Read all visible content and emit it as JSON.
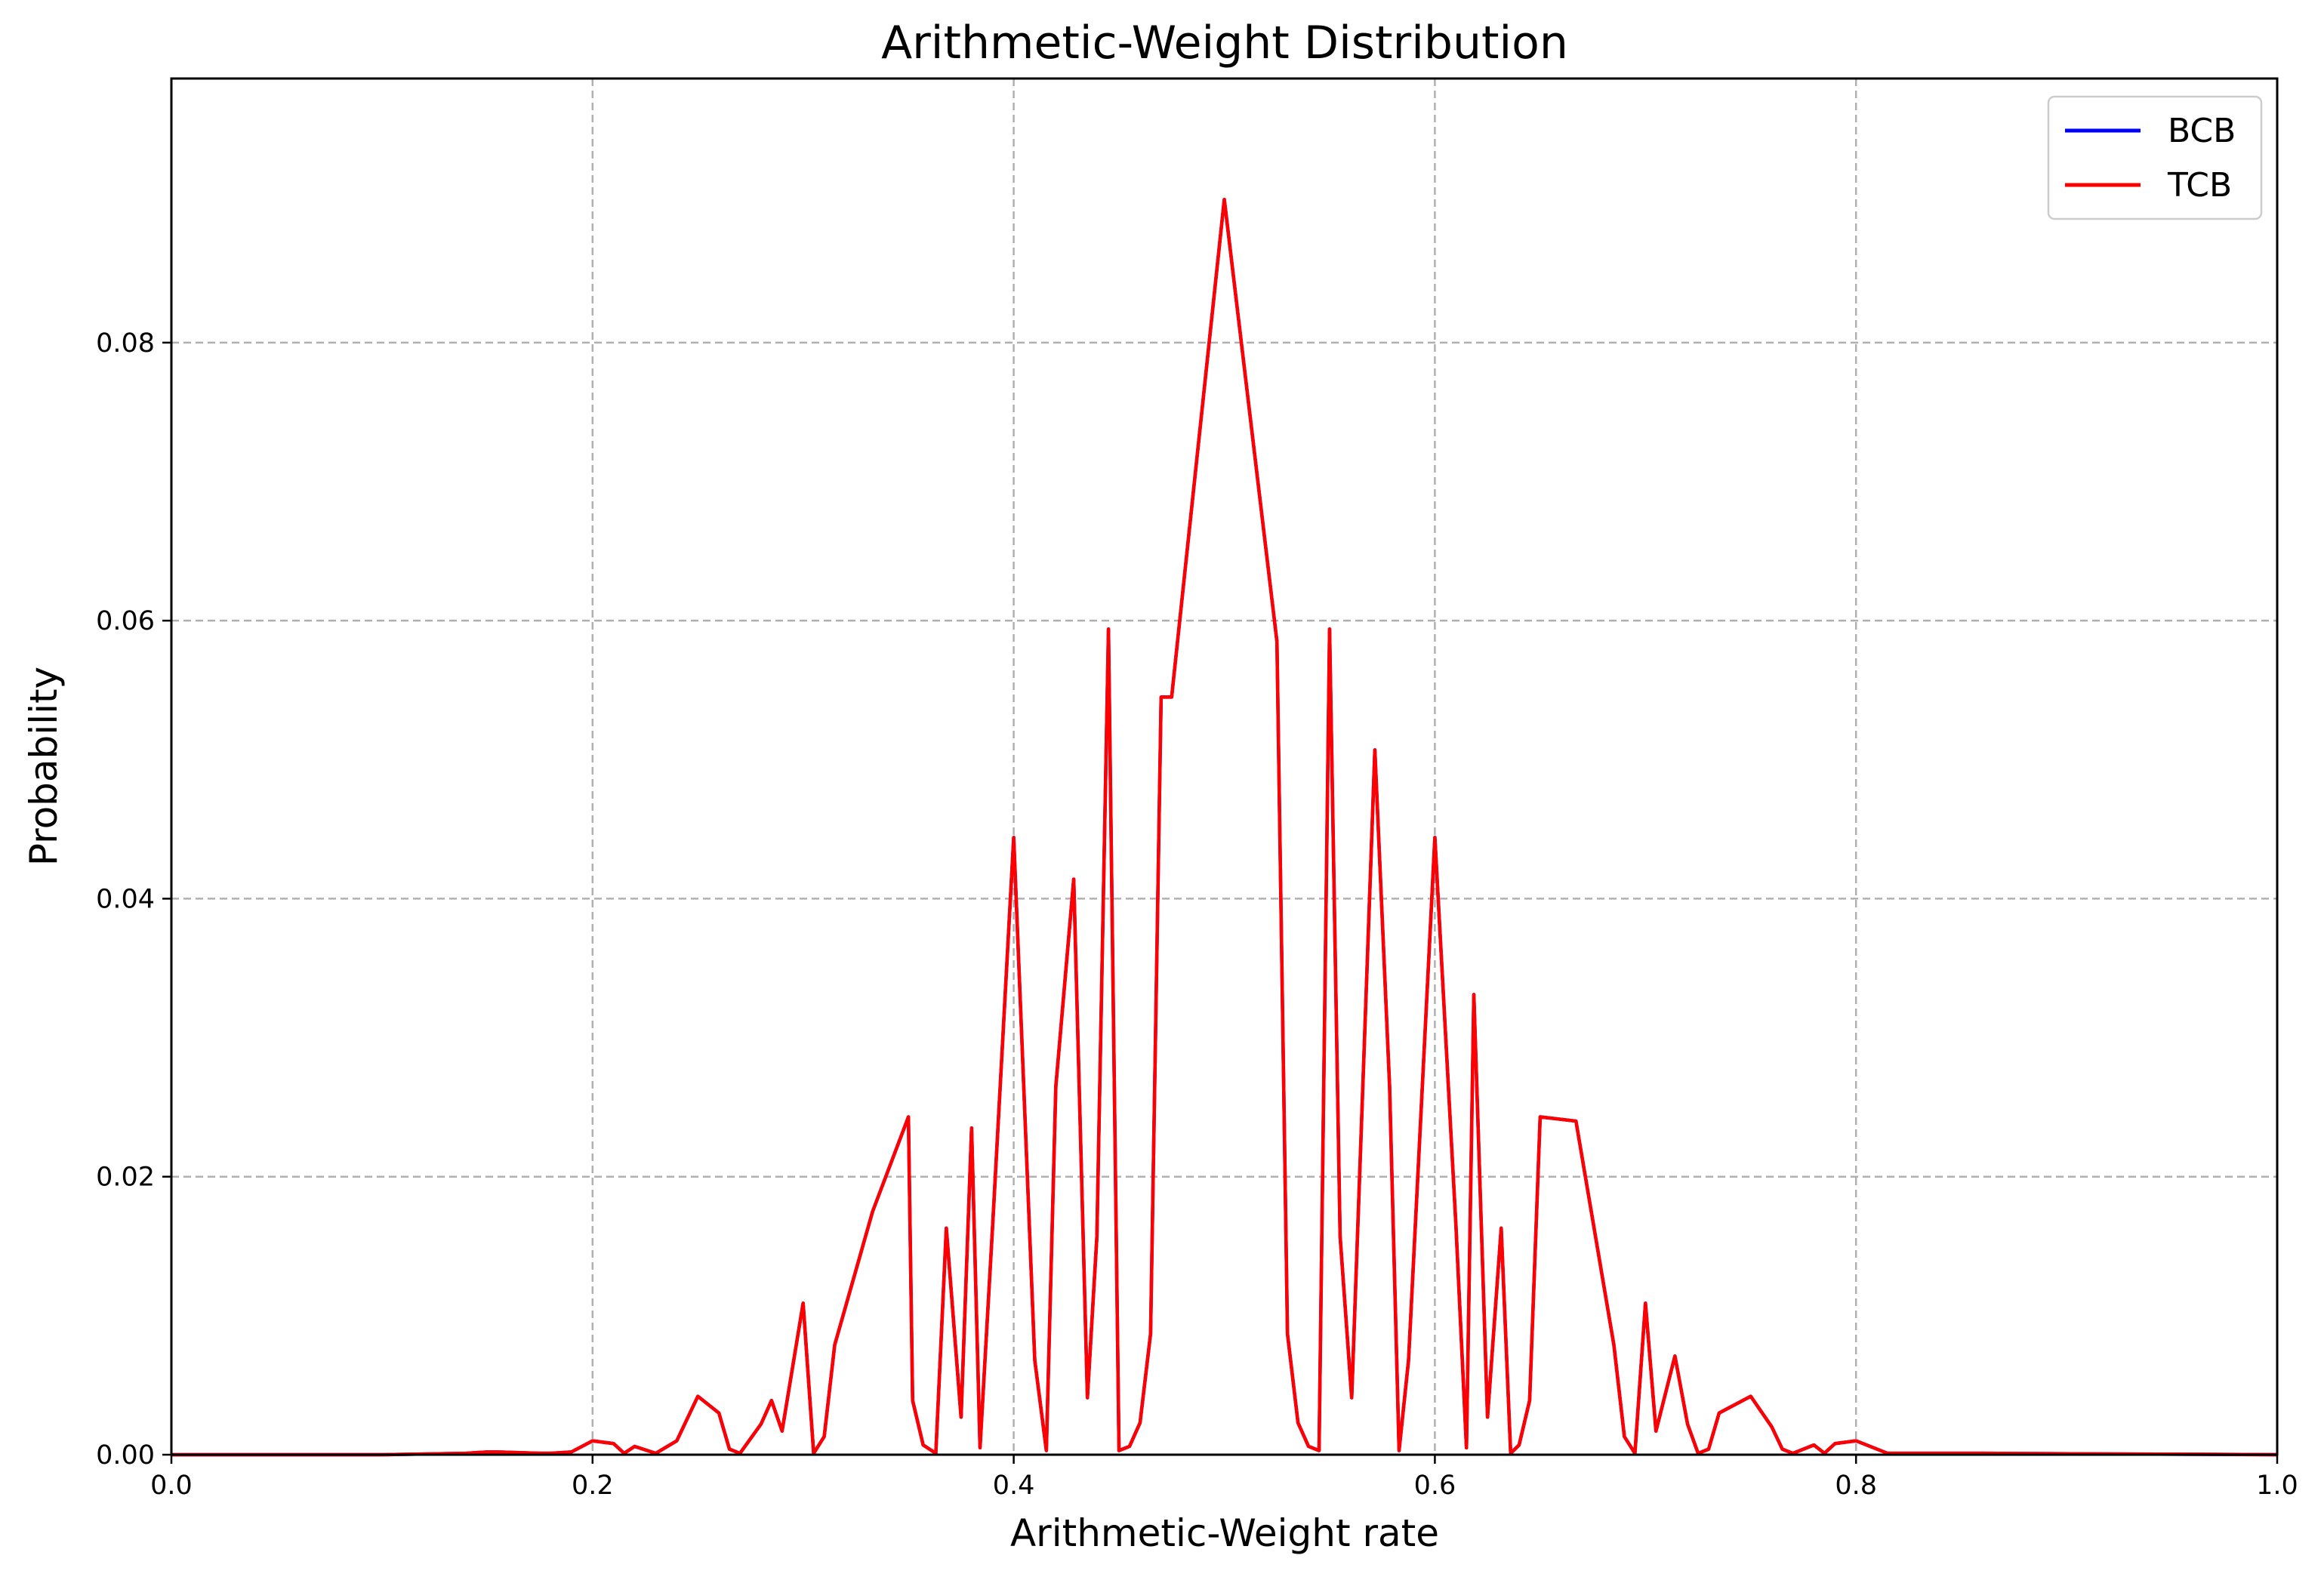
{
  "chart_data": {
    "type": "line",
    "title": "Arithmetic-Weight Distribution",
    "xlabel": "Arithmetic-Weight rate",
    "ylabel": "Probability",
    "xlim": [
      0,
      1
    ],
    "ylim": [
      0,
      0.099
    ],
    "xticks": [
      "0.0",
      "0.2",
      "0.4",
      "0.6",
      "0.8",
      "1.0"
    ],
    "xtick_values": [
      0,
      0.2,
      0.4,
      0.6,
      0.8,
      1.0
    ],
    "yticks": [
      "0.00",
      "0.02",
      "0.04",
      "0.06",
      "0.08"
    ],
    "ytick_values": [
      0,
      0.02,
      0.04,
      0.06,
      0.08
    ],
    "grid": true,
    "legend_position": "top-right",
    "series": [
      {
        "name": "BCB",
        "color": "#0000ff",
        "x": [
          0,
          0.1,
          0.14,
          0.15,
          0.155,
          0.175,
          0.18,
          0.19,
          0.2,
          0.21,
          0.215,
          0.22,
          0.23,
          0.24,
          0.25,
          0.26,
          0.265,
          0.27,
          0.28,
          0.285,
          0.29,
          0.3,
          0.305,
          0.31,
          0.315,
          0.333,
          0.35,
          0.352,
          0.357,
          0.363,
          0.368,
          0.375,
          0.38,
          0.384,
          0.39,
          0.4,
          0.41,
          0.4155,
          0.42,
          0.4285,
          0.435,
          0.4395,
          0.445,
          0.45,
          0.455,
          0.46,
          0.465,
          0.47,
          0.475,
          0.5,
          0.525,
          0.53,
          0.535,
          0.54,
          0.545,
          0.55,
          0.555,
          0.5605,
          0.5715,
          0.5785,
          0.583,
          0.5875,
          0.6,
          0.61,
          0.615,
          0.6185,
          0.625,
          0.6315,
          0.636,
          0.64,
          0.645,
          0.65,
          0.667,
          0.685,
          0.69,
          0.695,
          0.7,
          0.705,
          0.714,
          0.72,
          0.725,
          0.73,
          0.735,
          0.75,
          0.76,
          0.765,
          0.77,
          0.78,
          0.785,
          0.79,
          0.8,
          0.815,
          0.82,
          0.85,
          0.86,
          1.0
        ],
        "y": [
          0,
          0,
          0.0001,
          0.0002,
          0.0002,
          0.0001,
          0.0001,
          0.0002,
          0.001,
          0.0008,
          0.0001,
          0.0006,
          0.0001,
          0.001,
          0.0042,
          0.003,
          0.0004,
          0.0001,
          0.0022,
          0.0039,
          0.0017,
          0.0109,
          0.0001,
          0.0013,
          0.0079,
          0.0175,
          0.0243,
          0.0039,
          0.0007,
          0.0001,
          0.0163,
          0.0027,
          0.0235,
          0.0005,
          0.0165,
          0.0444,
          0.0068,
          0.0003,
          0.0265,
          0.0414,
          0.0041,
          0.0157,
          0.0594,
          0.0003,
          0.0006,
          0.0023,
          0.0087,
          0.0545,
          0.0545,
          0.0903,
          0.0585,
          0.0087,
          0.0023,
          0.0006,
          0.0003,
          0.0594,
          0.0157,
          0.0041,
          0.0507,
          0.0265,
          0.0003,
          0.0068,
          0.0444,
          0.0165,
          0.0005,
          0.0331,
          0.0027,
          0.0163,
          0.0001,
          0.0007,
          0.0039,
          0.0243,
          0.024,
          0.0079,
          0.0013,
          0.0001,
          0.0109,
          0.0017,
          0.0071,
          0.0022,
          0.0001,
          0.0004,
          0.003,
          0.0042,
          0.002,
          0.0004,
          0.0001,
          0.0007,
          0.0001,
          0.0008,
          0.001,
          0.0001,
          0.0001,
          0.0001,
          0.0001,
          0
        ]
      },
      {
        "name": "TCB",
        "color": "#ff0000",
        "x": [
          0,
          0.1,
          0.14,
          0.15,
          0.155,
          0.175,
          0.18,
          0.19,
          0.2,
          0.21,
          0.215,
          0.22,
          0.23,
          0.24,
          0.25,
          0.26,
          0.265,
          0.27,
          0.28,
          0.285,
          0.29,
          0.3,
          0.305,
          0.31,
          0.315,
          0.333,
          0.35,
          0.352,
          0.357,
          0.363,
          0.368,
          0.375,
          0.38,
          0.384,
          0.39,
          0.4,
          0.41,
          0.4155,
          0.42,
          0.4285,
          0.435,
          0.4395,
          0.445,
          0.45,
          0.455,
          0.46,
          0.465,
          0.47,
          0.475,
          0.5,
          0.525,
          0.53,
          0.535,
          0.54,
          0.545,
          0.55,
          0.555,
          0.5605,
          0.5715,
          0.5785,
          0.583,
          0.5875,
          0.6,
          0.61,
          0.615,
          0.6185,
          0.625,
          0.6315,
          0.636,
          0.64,
          0.645,
          0.65,
          0.667,
          0.685,
          0.69,
          0.695,
          0.7,
          0.705,
          0.714,
          0.72,
          0.725,
          0.73,
          0.735,
          0.75,
          0.76,
          0.765,
          0.77,
          0.78,
          0.785,
          0.79,
          0.8,
          0.815,
          0.82,
          0.85,
          0.86,
          1.0
        ],
        "y": [
          0,
          0,
          0.0001,
          0.0002,
          0.0002,
          0.0001,
          0.0001,
          0.0002,
          0.001,
          0.0008,
          0.0001,
          0.0006,
          0.0001,
          0.001,
          0.0042,
          0.003,
          0.0004,
          0.0001,
          0.0022,
          0.0039,
          0.0017,
          0.0109,
          0.0001,
          0.0013,
          0.0079,
          0.0175,
          0.0243,
          0.0039,
          0.0007,
          0.0001,
          0.0163,
          0.0027,
          0.0235,
          0.0005,
          0.0165,
          0.0444,
          0.0068,
          0.0003,
          0.0265,
          0.0414,
          0.0041,
          0.0157,
          0.0594,
          0.0003,
          0.0006,
          0.0023,
          0.0087,
          0.0545,
          0.0545,
          0.0903,
          0.0585,
          0.0087,
          0.0023,
          0.0006,
          0.0003,
          0.0594,
          0.0157,
          0.0041,
          0.0507,
          0.0265,
          0.0003,
          0.0068,
          0.0444,
          0.0165,
          0.0005,
          0.0331,
          0.0027,
          0.0163,
          0.0001,
          0.0007,
          0.0039,
          0.0243,
          0.024,
          0.0079,
          0.0013,
          0.0001,
          0.0109,
          0.0017,
          0.0071,
          0.0022,
          0.0001,
          0.0004,
          0.003,
          0.0042,
          0.002,
          0.0004,
          0.0001,
          0.0007,
          0.0001,
          0.0008,
          0.001,
          0.0001,
          0.0001,
          0.0001,
          0.0001,
          0
        ]
      }
    ]
  }
}
